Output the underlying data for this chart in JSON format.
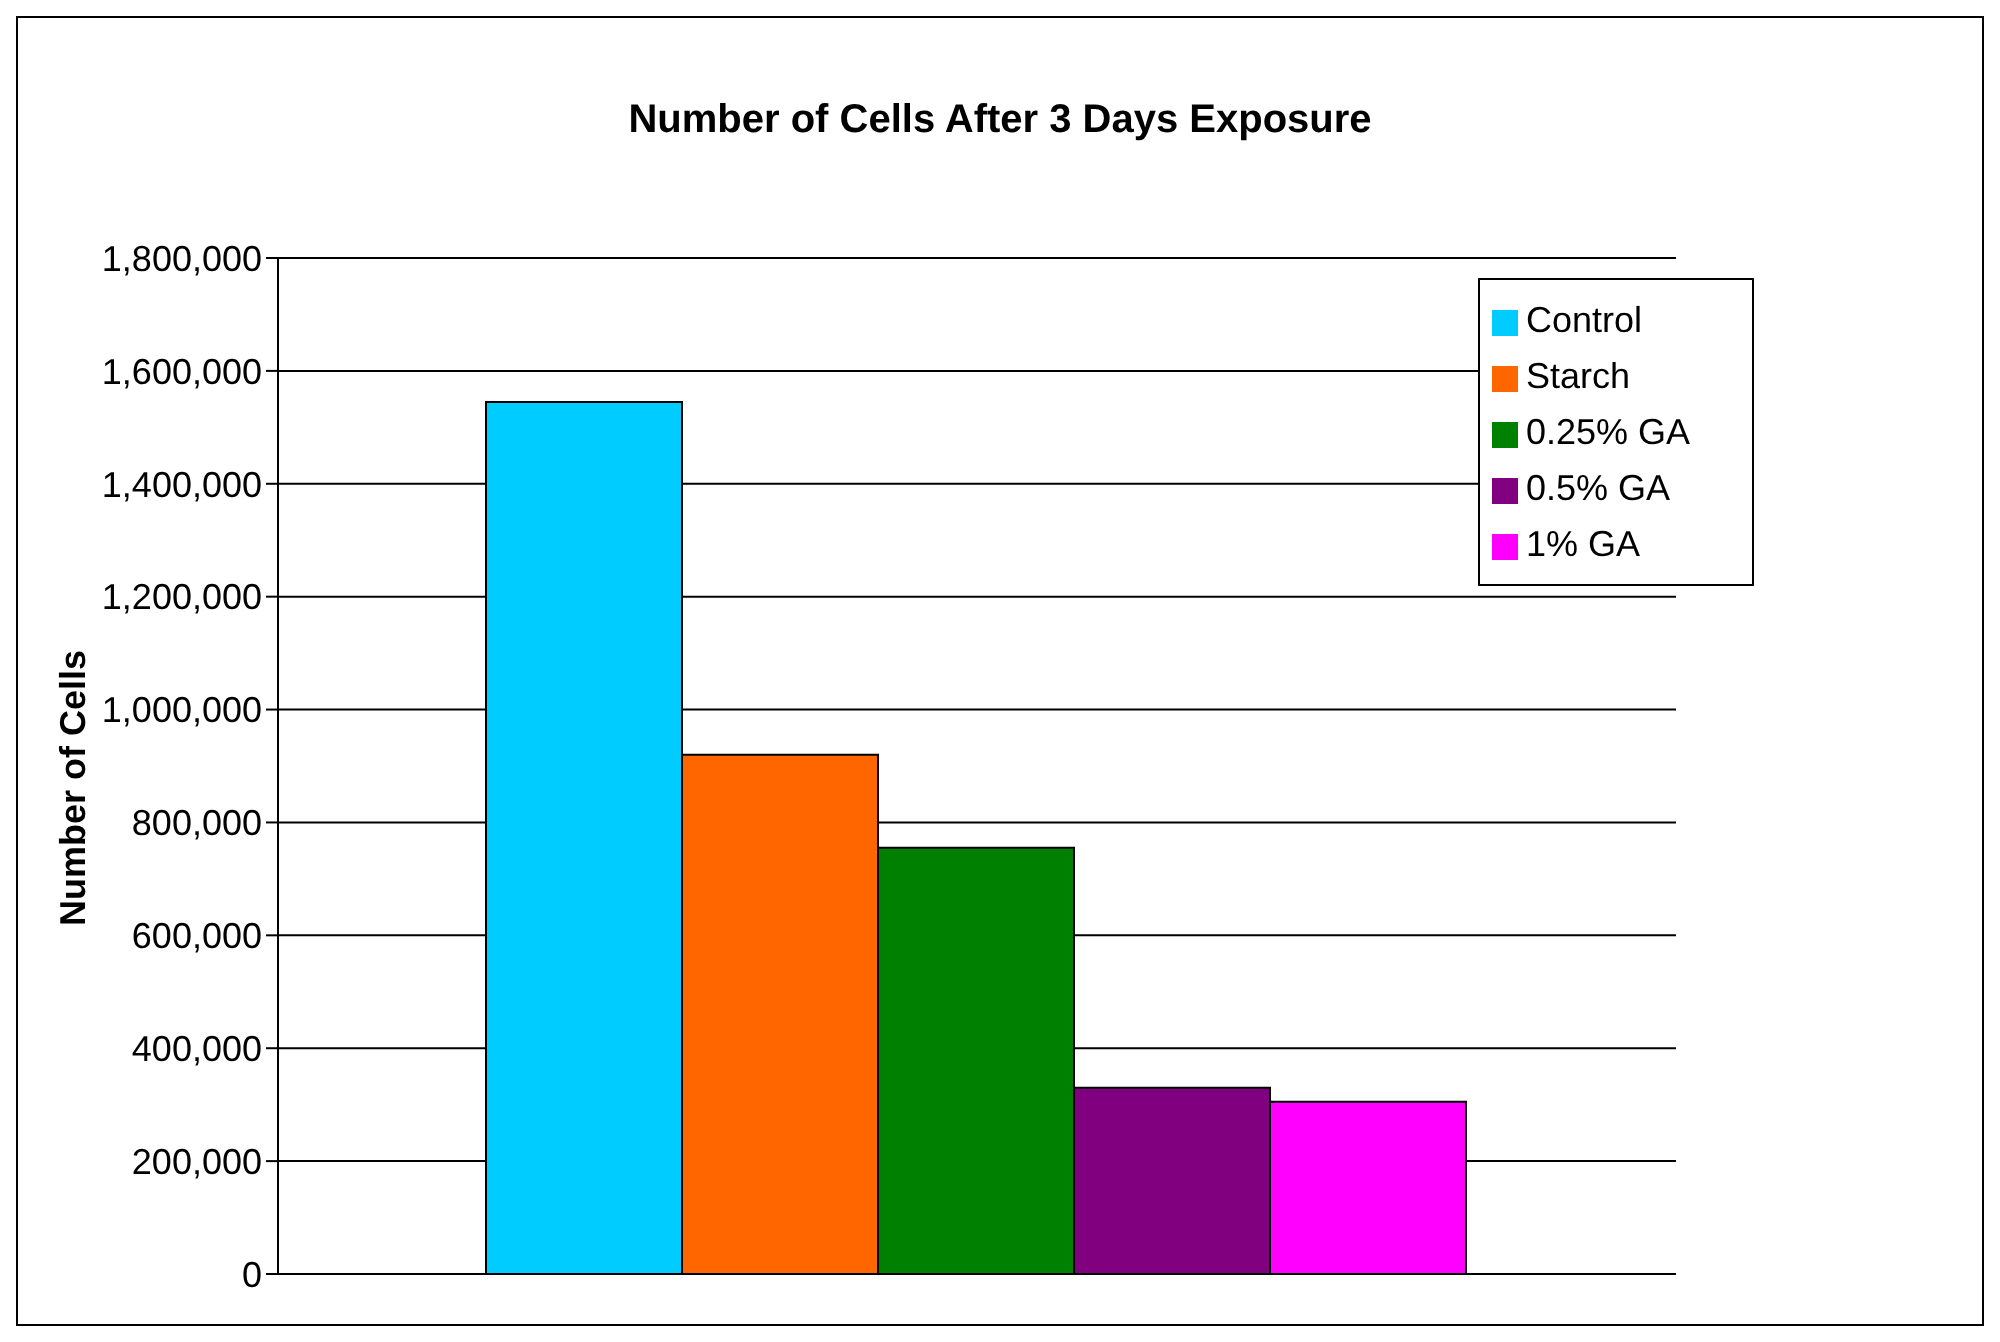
{
  "chart_data": {
    "type": "bar",
    "title": "Number of Cells After 3 Days Exposure",
    "ylabel": "Number of Cells",
    "categories": [
      null
    ],
    "series": [
      {
        "name": "Control",
        "color": "#00ccff",
        "values": [
          1545000
        ]
      },
      {
        "name": "Starch",
        "color": "#ff6600",
        "values": [
          920000
        ]
      },
      {
        "name": "0.25% GA",
        "color": "#008000",
        "values": [
          755000
        ]
      },
      {
        "name": "0.5% GA",
        "color": "#800080",
        "values": [
          330000
        ]
      },
      {
        "name": "1% GA",
        "color": "#ff00ff",
        "values": [
          305000
        ]
      }
    ],
    "ylim": [
      0,
      1800000
    ],
    "yticks": [
      0,
      {
        "value": 200000,
        "label": "200,000"
      },
      {
        "value": 400000,
        "label": "400,000"
      },
      {
        "value": 600000,
        "label": "600,000"
      },
      {
        "value": 800000,
        "label": "800,000"
      },
      {
        "value": 1000000,
        "label": "1,000,000"
      },
      {
        "value": 1200000,
        "label": "1,200,000"
      },
      {
        "value": 1400000,
        "label": "1,400,000"
      },
      {
        "value": 1600000,
        "label": "1,600,000"
      },
      {
        "value": 1800000,
        "label": "1,800,000"
      }
    ],
    "grid": "y",
    "legend": "right"
  }
}
